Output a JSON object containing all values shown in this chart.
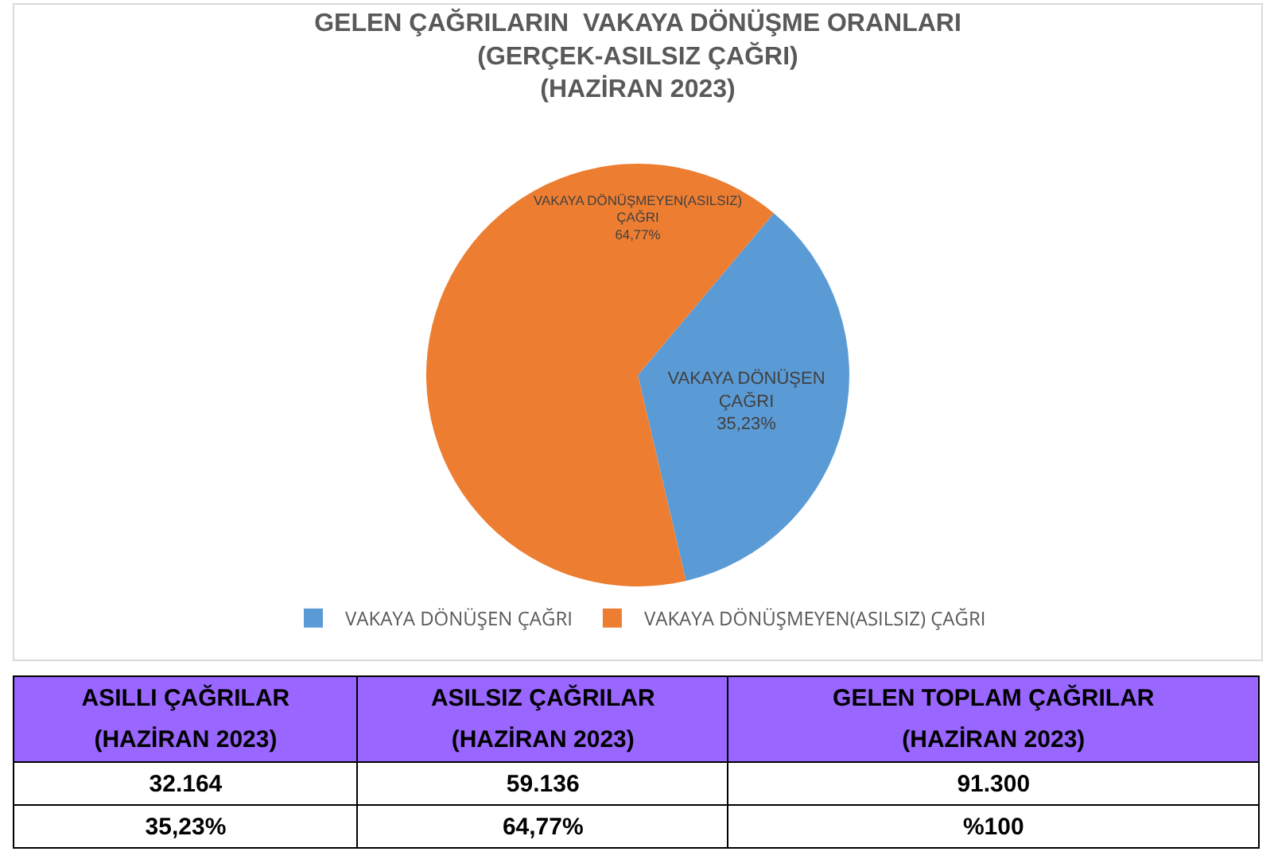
{
  "chart_data": [
    {
      "type": "pie",
      "title": "GELEN ÇAĞRILARIN  VAKAYA DÖNÜŞME ORANLARI\n(GERÇEK-ASILSIZ ÇAĞRI)\n(HAZİRAN 2023)",
      "categories": [
        "VAKAYA DÖNÜŞEN ÇAĞRI",
        "VAKAYA DÖNÜŞMEYEN(ASILSIZ) ÇAĞRI"
      ],
      "values": [
        35.23,
        64.77
      ],
      "value_labels": [
        "35,23%",
        "64,77%"
      ],
      "colors": [
        "#5b9bd5",
        "#ed7d31"
      ],
      "legend": "bottom"
    },
    {
      "type": "other",
      "annotations": [
        "ASILLI ÇAĞRILAR\n(HAZİRAN 2023)",
        "ASILSIZ ÇAĞRILAR\n(HAZİRAN 2023)",
        "GELEN TOPLAM ÇAĞRILAR\n(HAZİRAN 2023)",
        "32.164",
        "59.136",
        "91.300",
        "35,23%",
        "64,77%",
        "%100"
      ]
    }
  ]
}
